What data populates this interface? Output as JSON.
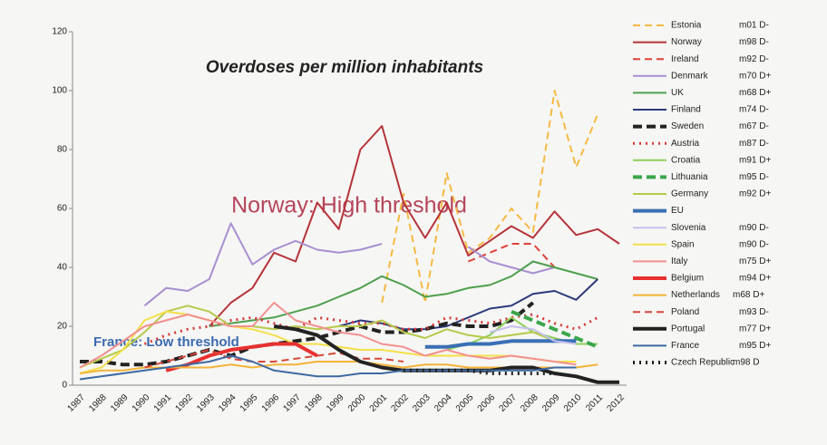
{
  "chart_data": {
    "type": "line",
    "title": "Overdoses per million inhabitants",
    "annotations": [
      "Norway: High threshold",
      "France: Low threshold"
    ],
    "categories": [
      "1987",
      "1988",
      "1989",
      "1990",
      "1991",
      "1992",
      "1993",
      "1994",
      "1995",
      "1996",
      "1997",
      "1998",
      "1999",
      "2000",
      "2001",
      "2002",
      "2003",
      "2004",
      "2005",
      "2006",
      "2007",
      "2008",
      "2009",
      "2010",
      "2011",
      "2012"
    ],
    "ylim": [
      0,
      120
    ],
    "yticks": [
      0,
      20,
      40,
      60,
      80,
      100,
      120
    ],
    "series": [
      {
        "name": "Estonia",
        "code": "m01 D-",
        "color": "#f5b942",
        "style": "dashed",
        "values": [
          null,
          null,
          null,
          null,
          null,
          null,
          null,
          null,
          null,
          null,
          null,
          null,
          null,
          null,
          28,
          65,
          28,
          72,
          45,
          50,
          60,
          52,
          100,
          74,
          92,
          null
        ]
      },
      {
        "name": "Norway",
        "code": "m98 D-",
        "color": "#b5343a",
        "style": "solid",
        "values": [
          null,
          null,
          null,
          null,
          null,
          null,
          20,
          28,
          33,
          45,
          42,
          62,
          53,
          80,
          88,
          62,
          50,
          62,
          44,
          49,
          54,
          50,
          59,
          51,
          53,
          48
        ]
      },
      {
        "name": "Ireland",
        "code": "m92 D-",
        "color": "#e0413a",
        "style": "dashed",
        "values": [
          null,
          null,
          null,
          null,
          null,
          null,
          null,
          null,
          null,
          null,
          null,
          null,
          null,
          null,
          null,
          null,
          null,
          null,
          42,
          45,
          48,
          48,
          40,
          null,
          null,
          null
        ]
      },
      {
        "name": "Denmark",
        "code": "m70 D+",
        "color": "#a98fd0",
        "style": "solid",
        "values": [
          null,
          null,
          null,
          27,
          33,
          32,
          36,
          55,
          41,
          46,
          49,
          46,
          45,
          46,
          48,
          null,
          null,
          null,
          47,
          42,
          40,
          38,
          40,
          null,
          null,
          null
        ]
      },
      {
        "name": "UK",
        "code": "m68 D+",
        "color": "#4ea04e",
        "style": "solid",
        "values": [
          null,
          null,
          null,
          null,
          null,
          null,
          20,
          21,
          22,
          23,
          25,
          27,
          30,
          33,
          37,
          34,
          30,
          31,
          33,
          34,
          37,
          42,
          40,
          38,
          36,
          null
        ]
      },
      {
        "name": "Finland",
        "code": "m74 D-",
        "color": "#2c3a7a",
        "style": "solid",
        "values": [
          null,
          null,
          null,
          null,
          null,
          null,
          null,
          null,
          null,
          null,
          null,
          null,
          20,
          22,
          21,
          19,
          19,
          20,
          23,
          26,
          27,
          31,
          32,
          29,
          36,
          null
        ]
      },
      {
        "name": "Sweden",
        "code": "m67 D-",
        "color": "#222222",
        "style": "thick-dashed",
        "values": [
          8,
          8,
          7,
          7,
          8,
          10,
          12,
          10,
          13,
          14,
          15,
          16,
          18,
          20,
          18,
          18,
          19,
          21,
          20,
          20,
          22,
          28,
          null,
          null,
          null,
          null
        ]
      },
      {
        "name": "Austria",
        "code": "m87 D-",
        "color": "#d63b3b",
        "style": "dotted",
        "values": [
          null,
          null,
          null,
          14,
          17,
          19,
          20,
          22,
          23,
          21,
          19,
          23,
          22,
          21,
          21,
          19,
          19,
          23,
          22,
          21,
          23,
          24,
          21,
          19,
          23,
          null
        ]
      },
      {
        "name": "Croatia",
        "code": "m91 D+",
        "color": "#8fcf5a",
        "style": "solid",
        "values": [
          null,
          null,
          null,
          null,
          null,
          null,
          null,
          null,
          null,
          null,
          null,
          null,
          null,
          null,
          null,
          null,
          null,
          12,
          14,
          17,
          23,
          18,
          16,
          14,
          14,
          null
        ]
      },
      {
        "name": "Lithuania",
        "code": "m95 D-",
        "color": "#3aa64a",
        "style": "thick-dashed",
        "values": [
          null,
          null,
          null,
          null,
          null,
          null,
          null,
          null,
          null,
          null,
          null,
          null,
          null,
          null,
          null,
          null,
          null,
          null,
          null,
          null,
          25,
          22,
          19,
          16,
          13,
          null
        ]
      },
      {
        "name": "Germany",
        "code": "m92 D+",
        "color": "#b8c94a",
        "style": "solid",
        "values": [
          6,
          9,
          12,
          18,
          25,
          27,
          25,
          20,
          20,
          19,
          20,
          19,
          20,
          20,
          22,
          18,
          16,
          19,
          17,
          16,
          17,
          18,
          15,
          15,
          null,
          null
        ]
      },
      {
        "name": "EU",
        "code": "",
        "color": "#3a6fb5",
        "style": "thick",
        "values": [
          null,
          null,
          null,
          null,
          null,
          null,
          null,
          null,
          null,
          null,
          null,
          null,
          null,
          null,
          null,
          null,
          13,
          13,
          14,
          14,
          15,
          15,
          15,
          15,
          null,
          null
        ]
      },
      {
        "name": "Slovenia",
        "code": "m90 D-",
        "color": "#c5c0ee",
        "style": "solid",
        "values": [
          null,
          null,
          null,
          null,
          null,
          null,
          null,
          null,
          null,
          null,
          null,
          null,
          null,
          null,
          null,
          null,
          null,
          null,
          null,
          18,
          20,
          19,
          15,
          14,
          null,
          null
        ]
      },
      {
        "name": "Spain",
        "code": "m90 D-",
        "color": "#f4e04a",
        "style": "solid",
        "values": [
          4,
          6,
          12,
          22,
          25,
          24,
          22,
          20,
          19,
          17,
          14,
          14,
          13,
          12,
          12,
          11,
          10,
          10,
          10,
          10,
          10,
          9,
          8,
          8,
          null,
          null
        ]
      },
      {
        "name": "Italy",
        "code": "m75 D+",
        "color": "#f29090",
        "style": "solid",
        "values": [
          6,
          10,
          15,
          20,
          22,
          24,
          22,
          20,
          20,
          28,
          22,
          20,
          18,
          17,
          14,
          13,
          10,
          12,
          10,
          9,
          10,
          9,
          8,
          7,
          null,
          null
        ]
      },
      {
        "name": "Belgium",
        "code": "m94 D+",
        "color": "#e83030",
        "style": "thick",
        "values": [
          null,
          null,
          null,
          null,
          5,
          7,
          10,
          12,
          13,
          14,
          14,
          10,
          null,
          null,
          null,
          null,
          null,
          null,
          null,
          null,
          null,
          null,
          null,
          null,
          null,
          null
        ]
      },
      {
        "name": "Netherlands",
        "code": "m68 D+",
        "color": "#f3b43a",
        "style": "solid",
        "values": [
          4,
          5,
          5,
          6,
          6,
          6,
          6,
          7,
          6,
          7,
          7,
          8,
          8,
          8,
          7,
          6,
          7,
          7,
          6,
          6,
          6,
          6,
          6,
          6,
          7,
          null
        ]
      },
      {
        "name": "Poland",
        "code": "m93 D-",
        "color": "#d6463a",
        "style": "dashed",
        "values": [
          null,
          null,
          null,
          6,
          8,
          10,
          12,
          9,
          8,
          8,
          9,
          10,
          11,
          9,
          9,
          8,
          null,
          null,
          null,
          null,
          null,
          null,
          null,
          null,
          null,
          null
        ]
      },
      {
        "name": "Portugal",
        "code": "m77 D+",
        "color": "#222222",
        "style": "thick",
        "values": [
          null,
          null,
          null,
          null,
          null,
          null,
          null,
          null,
          null,
          20,
          19,
          17,
          12,
          8,
          6,
          5,
          5,
          5,
          5,
          5,
          6,
          6,
          4,
          3,
          1,
          1
        ]
      },
      {
        "name": "France",
        "code": "m95 D+",
        "color": "#3d6aa3",
        "style": "solid",
        "values": [
          2,
          3,
          4,
          5,
          6,
          7,
          8,
          10,
          8,
          5,
          4,
          3,
          3,
          4,
          4,
          5,
          5,
          5,
          5,
          5,
          5,
          5,
          6,
          6,
          null,
          null
        ]
      },
      {
        "name": "Czech Republic",
        "code": "m98 D",
        "color": "#222222",
        "style": "thick-dotted",
        "values": [
          null,
          null,
          null,
          null,
          null,
          null,
          null,
          null,
          null,
          null,
          null,
          null,
          null,
          null,
          null,
          5,
          5,
          5,
          5,
          4,
          4,
          4,
          4,
          null,
          null,
          null
        ]
      }
    ]
  }
}
